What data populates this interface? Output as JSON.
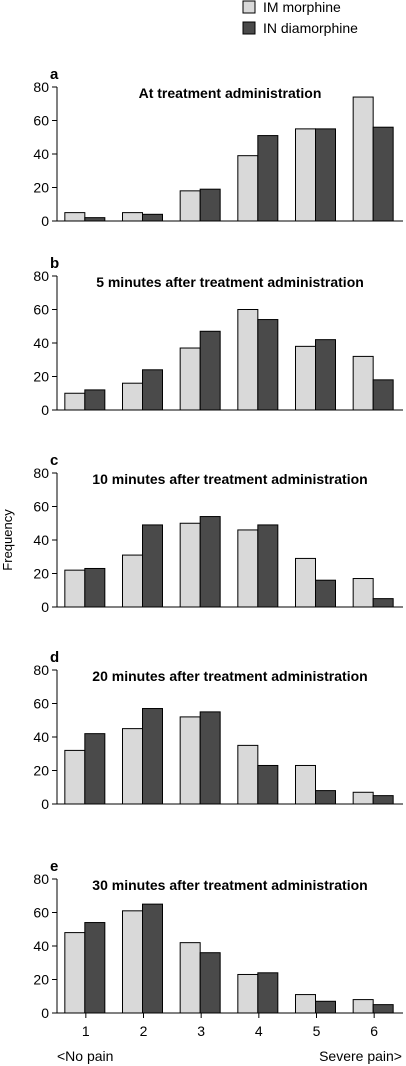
{
  "legend": [
    {
      "label": "IM morphine",
      "color": "#d9d9d9"
    },
    {
      "label": "IN diamorphine",
      "color": "#4a4a4a"
    }
  ],
  "ylabel": "Frequency",
  "x_left_label": "<No pain",
  "x_right_label": "Severe pain>",
  "chart_data": [
    {
      "type": "bar",
      "letter": "a",
      "title": "At treatment administration",
      "categories": [
        "1",
        "2",
        "3",
        "4",
        "5",
        "6"
      ],
      "ylim": [
        0,
        80
      ],
      "yticks": [
        0,
        20,
        40,
        60,
        80
      ],
      "series": [
        {
          "name": "IM morphine",
          "values": [
            5,
            5,
            18,
            39,
            55,
            74
          ]
        },
        {
          "name": "IN diamorphine",
          "values": [
            2,
            4,
            19,
            51,
            55,
            56
          ]
        }
      ]
    },
    {
      "type": "bar",
      "letter": "b",
      "title": "5 minutes after treatment administration",
      "categories": [
        "1",
        "2",
        "3",
        "4",
        "5",
        "6"
      ],
      "ylim": [
        0,
        80
      ],
      "yticks": [
        0,
        20,
        40,
        60,
        80
      ],
      "series": [
        {
          "name": "IM morphine",
          "values": [
            10,
            16,
            37,
            60,
            38,
            32
          ]
        },
        {
          "name": "IN diamorphine",
          "values": [
            12,
            24,
            47,
            54,
            42,
            18
          ]
        }
      ]
    },
    {
      "type": "bar",
      "letter": "c",
      "title": "10 minutes after treatment administration",
      "categories": [
        "1",
        "2",
        "3",
        "4",
        "5",
        "6"
      ],
      "ylim": [
        0,
        80
      ],
      "yticks": [
        0,
        20,
        40,
        60,
        80
      ],
      "series": [
        {
          "name": "IM morphine",
          "values": [
            22,
            31,
            50,
            46,
            29,
            17
          ]
        },
        {
          "name": "IN diamorphine",
          "values": [
            23,
            49,
            54,
            49,
            16,
            5
          ]
        }
      ]
    },
    {
      "type": "bar",
      "letter": "d",
      "title": "20 minutes after treatment administration",
      "categories": [
        "1",
        "2",
        "3",
        "4",
        "5",
        "6"
      ],
      "ylim": [
        0,
        80
      ],
      "yticks": [
        0,
        20,
        40,
        60,
        80
      ],
      "series": [
        {
          "name": "IM morphine",
          "values": [
            32,
            45,
            52,
            35,
            23,
            7
          ]
        },
        {
          "name": "IN diamorphine",
          "values": [
            42,
            57,
            55,
            23,
            8,
            5
          ]
        }
      ]
    },
    {
      "type": "bar",
      "letter": "e",
      "title": "30 minutes after treatment administration",
      "categories": [
        "1",
        "2",
        "3",
        "4",
        "5",
        "6"
      ],
      "ylim": [
        0,
        80
      ],
      "yticks": [
        0,
        20,
        40,
        60,
        80
      ],
      "series": [
        {
          "name": "IM morphine",
          "values": [
            48,
            61,
            42,
            23,
            11,
            8
          ]
        },
        {
          "name": "IN diamorphine",
          "values": [
            54,
            65,
            36,
            24,
            7,
            5
          ]
        }
      ]
    }
  ]
}
